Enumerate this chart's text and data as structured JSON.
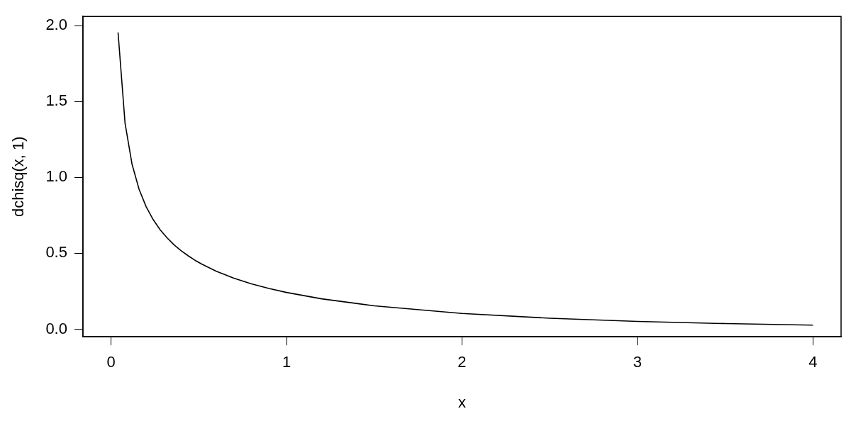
{
  "chart_data": {
    "type": "line",
    "xlabel": "x",
    "ylabel": "dchisq(x, 1)",
    "x": [
      0.04,
      0.08,
      0.12,
      0.16,
      0.2,
      0.24,
      0.28,
      0.32,
      0.36,
      0.4,
      0.44,
      0.48,
      0.52,
      0.6,
      0.7,
      0.8,
      0.9,
      1.0,
      1.2,
      1.5,
      2.0,
      2.5,
      3.0,
      3.5,
      4.0
    ],
    "series": [
      {
        "color": "#000000",
        "values": [
          1.955,
          1.355,
          1.085,
          0.921,
          0.807,
          0.722,
          0.655,
          0.601,
          0.555,
          0.516,
          0.483,
          0.453,
          0.427,
          0.382,
          0.336,
          0.299,
          0.268,
          0.242,
          0.2,
          0.154,
          0.104,
          0.0723,
          0.0514,
          0.0371,
          0.027
        ]
      }
    ],
    "xlim": [
      -0.16,
      4.16
    ],
    "xticks": [
      0,
      1,
      2,
      3,
      4
    ],
    "ylim": [
      -0.05,
      2.06
    ],
    "yticks": [
      {
        "value": 0,
        "label": "0.0"
      },
      {
        "value": 0.5,
        "label": "0.5"
      },
      {
        "value": 1,
        "label": "1.0"
      },
      {
        "value": 1.5,
        "label": "1.5"
      },
      {
        "value": 2,
        "label": "2.0"
      }
    ],
    "grid": false,
    "legend": false,
    "marker": "none",
    "line_style": "solid"
  }
}
